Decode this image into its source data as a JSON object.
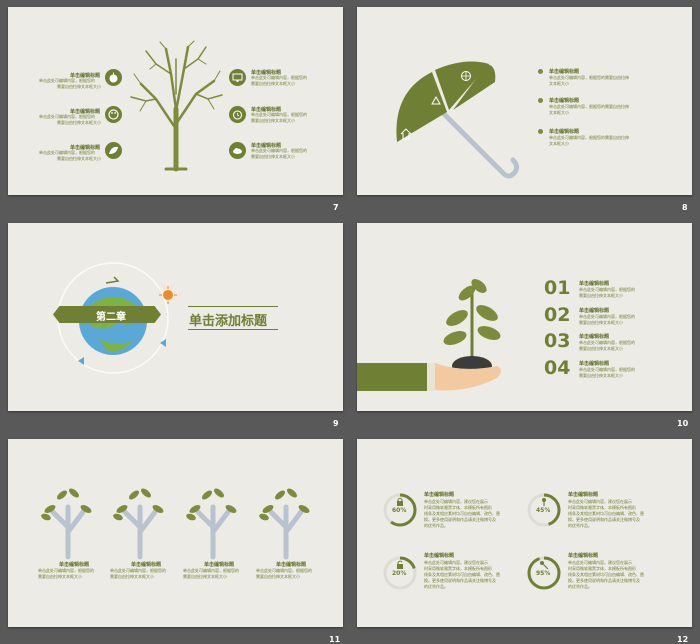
{
  "slides": [
    {
      "number": "7",
      "items_left": [
        {
          "title": "单击编辑标题",
          "body1": "单击此处可编辑内容，根据您的",
          "body2": "需要自由拉伸文本框大小"
        },
        {
          "title": "单击编辑标题",
          "body1": "单击此处可编辑内容，根据您的",
          "body2": "需要自由拉伸文本框大小"
        },
        {
          "title": "单击编辑标题",
          "body1": "单击此处可编辑内容，根据您的",
          "body2": "需要自由拉伸文本框大小"
        }
      ],
      "items_right": [
        {
          "title": "单击编辑标题",
          "body1": "单击此处可编辑内容，根据您的",
          "body2": "需要自由拉伸文本框大小"
        },
        {
          "title": "单击编辑标题",
          "body1": "单击此处可编辑内容，根据您的",
          "body2": "需要自由拉伸文本框大小"
        },
        {
          "title": "单击编辑标题",
          "body1": "单击此处可编辑内容，根据您的",
          "body2": "需要自由拉伸文本框大小"
        }
      ]
    },
    {
      "number": "8",
      "items": [
        {
          "title": "单击编辑标题",
          "body1": "单击此处可编辑内容，根据您的需要自由拉伸",
          "body2": "文本框大小"
        },
        {
          "title": "单击编辑标题",
          "body1": "单击此处可编辑内容，根据您的需要自由拉伸",
          "body2": "文本框大小"
        },
        {
          "title": "单击编辑标题",
          "body1": "单击此处可编辑内容，根据您的需要自由拉伸",
          "body2": "文本框大小"
        }
      ]
    },
    {
      "number": "9",
      "chapter": "第二章",
      "title": "单击添加标题"
    },
    {
      "number": "10",
      "items": [
        {
          "num": "01",
          "title": "单击编辑标题",
          "body1": "单击此处可编辑内容，根据您的",
          "body2": "需要自由拉伸文本框大小"
        },
        {
          "num": "02",
          "title": "单击编辑标题",
          "body1": "单击此处可编辑内容，根据您的",
          "body2": "需要自由拉伸文本框大小"
        },
        {
          "num": "03",
          "title": "单击编辑标题",
          "body1": "单击此处可编辑内容，根据您的",
          "body2": "需要自由拉伸文本框大小"
        },
        {
          "num": "04",
          "title": "单击编辑标题",
          "body1": "单击此处可编辑内容，根据您的",
          "body2": "需要自由拉伸文本框大小"
        }
      ]
    },
    {
      "number": "11",
      "items": [
        {
          "title": "单击编辑标题",
          "body1": "单击此处可编辑内容，根据您的",
          "body2": "需要自由拉伸文本框大小"
        },
        {
          "title": "单击编辑标题",
          "body1": "单击此处可编辑内容，根据您的",
          "body2": "需要自由拉伸文本框大小"
        },
        {
          "title": "单击编辑标题",
          "body1": "单击此处可编辑内容，根据您的",
          "body2": "需要自由拉伸文本框大小"
        },
        {
          "title": "单击编辑标题",
          "body1": "单击此处可编辑内容，根据您的",
          "body2": "需要自由拉伸文本框大小"
        }
      ]
    },
    {
      "number": "12",
      "items": [
        {
          "percent": "60%",
          "progress": 0.6,
          "icon": "lock-icon",
          "title": "单击编辑标题",
          "lines": [
            "单击此处可编辑内容，建议您在展示",
            "时采用微软雅黑字体，本模板所有图形",
            "线条及其相应素材均可自由编辑、改色、替",
            "换。更多使用说明和作品请关注微博号及",
            "的优秀作品。"
          ]
        },
        {
          "percent": "45%",
          "progress": 0.45,
          "icon": "key-icon",
          "title": "单击编辑标题",
          "lines": [
            "单击此处可编辑内容，建议您在展示",
            "时采用微软雅黑字体，本模板所有图形",
            "线条及其相应素材均可自由编辑、改色、替",
            "换。更多使用说明和作品请关注微博号及",
            "的优秀作品。"
          ]
        },
        {
          "percent": "20%",
          "progress": 0.2,
          "icon": "unlock-icon",
          "title": "单击编辑标题",
          "lines": [
            "单击此处可编辑内容，建议您在展示",
            "时采用微软雅黑字体，本模板所有图形",
            "线条及其相应素材均可自由编辑、改色、替",
            "换。更多使用说明和作品请关注微博号及",
            "的优秀作品。"
          ]
        },
        {
          "percent": "95%",
          "progress": 0.95,
          "icon": "key-icon",
          "title": "单击编辑标题",
          "lines": [
            "单击此处可编辑内容，建议您在展示",
            "时采用微软雅黑字体，本模板所有图形",
            "线条及其相应素材均可自由编辑、改色、替",
            "换。更多使用说明和作品请关注微博号及",
            "的优秀作品。"
          ]
        }
      ]
    }
  ],
  "colors": {
    "background": "#595959",
    "slide": "#ecebe5",
    "accent": "#6f7f34",
    "accent_light": "#9aa85a",
    "tree_trunk": "#b9c3cf"
  }
}
